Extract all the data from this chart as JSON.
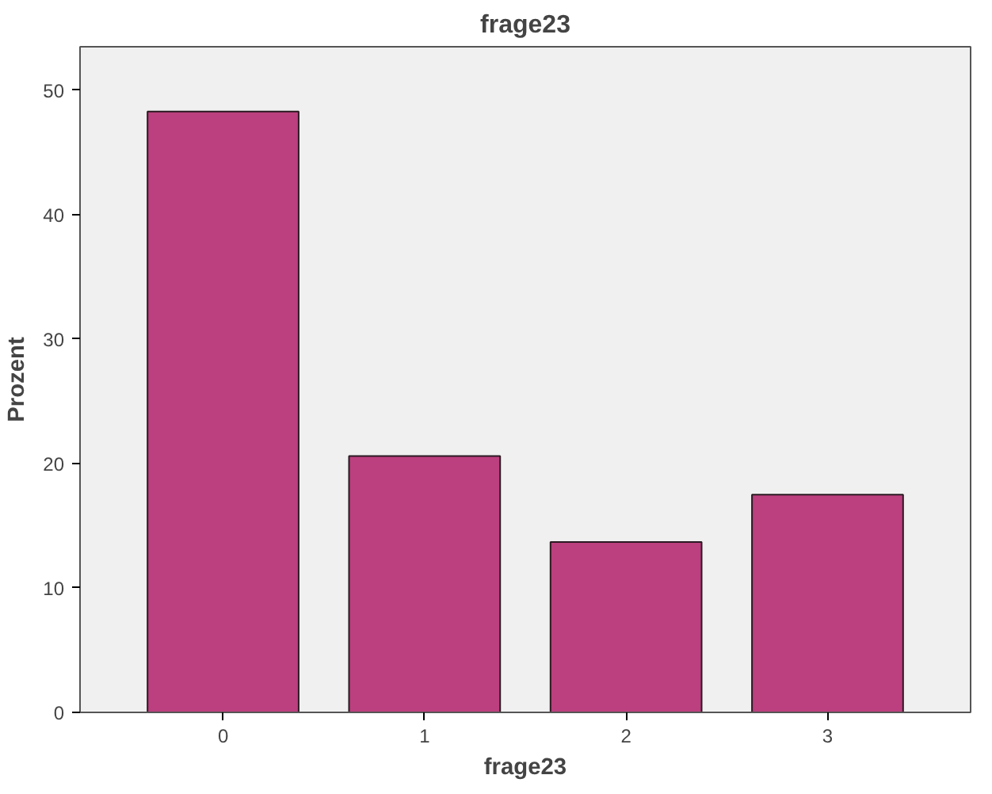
{
  "chart_data": {
    "type": "bar",
    "title": "frage23",
    "xlabel": "frage23",
    "ylabel": "Prozent",
    "categories": [
      "0",
      "1",
      "2",
      "3"
    ],
    "values": [
      48.3,
      20.6,
      13.7,
      17.5
    ],
    "color": "#bc3f7f",
    "ylim": [
      0,
      53.5
    ],
    "yticks": [
      0,
      10,
      20,
      30,
      40,
      50
    ],
    "grid": false
  }
}
